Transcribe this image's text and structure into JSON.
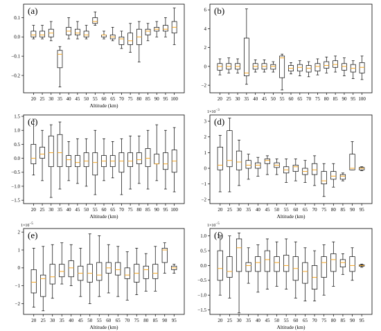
{
  "figure": {
    "colors": {
      "box": "#000000",
      "median": "#f5a623",
      "frame": "#000000"
    }
  },
  "chart_data": [
    {
      "type": "box",
      "label": "(a)",
      "xlabel": "Altitude (km)",
      "categories": [
        "20",
        "25",
        "30",
        "35",
        "40",
        "45",
        "50",
        "55",
        "60",
        "65",
        "70",
        "75",
        "80",
        "85",
        "90",
        "95",
        "100"
      ],
      "yticks": [
        0.1,
        0.0,
        -0.1,
        -0.2
      ],
      "ytick_labels": [
        "0.1",
        "0.0",
        "−0.1",
        "−0.2"
      ],
      "ylim": [
        -0.29,
        0.17
      ],
      "multiplier": "",
      "boxes": [
        {
          "wlo": -0.01,
          "q1": 0.0,
          "med": 0.01,
          "q3": 0.03,
          "whi": 0.06
        },
        {
          "wlo": -0.01,
          "q1": 0.0,
          "med": 0.01,
          "q3": 0.03,
          "whi": 0.06
        },
        {
          "wlo": -0.02,
          "q1": 0.0,
          "med": 0.02,
          "q3": 0.04,
          "whi": 0.08
        },
        {
          "wlo": -0.26,
          "q1": -0.16,
          "med": -0.09,
          "q3": -0.07,
          "whi": -0.05
        },
        {
          "wlo": -0.01,
          "q1": 0.01,
          "med": 0.03,
          "q3": 0.05,
          "whi": 0.1
        },
        {
          "wlo": -0.01,
          "q1": 0.01,
          "med": 0.02,
          "q3": 0.04,
          "whi": 0.08
        },
        {
          "wlo": -0.01,
          "q1": 0.0,
          "med": 0.01,
          "q3": 0.03,
          "whi": 0.06
        },
        {
          "wlo": 0.06,
          "q1": 0.07,
          "med": 0.08,
          "q3": 0.1,
          "whi": 0.13
        },
        {
          "wlo": -0.01,
          "q1": 0.0,
          "med": 0.01,
          "q3": 0.01,
          "whi": 0.03
        },
        {
          "wlo": -0.02,
          "q1": -0.01,
          "med": 0.0,
          "q3": 0.01,
          "whi": 0.05
        },
        {
          "wlo": -0.06,
          "q1": -0.04,
          "med": -0.01,
          "q3": 0.0,
          "whi": 0.03
        },
        {
          "wlo": -0.08,
          "q1": -0.04,
          "med": -0.02,
          "q3": 0.02,
          "whi": 0.07
        },
        {
          "wlo": -0.13,
          "q1": -0.04,
          "med": 0.0,
          "q3": 0.04,
          "whi": 0.08
        },
        {
          "wlo": -0.02,
          "q1": 0.01,
          "med": 0.03,
          "q3": 0.04,
          "whi": 0.07
        },
        {
          "wlo": 0.0,
          "q1": 0.03,
          "med": 0.04,
          "q3": 0.05,
          "whi": 0.08
        },
        {
          "wlo": 0.0,
          "q1": 0.03,
          "med": 0.04,
          "q3": 0.06,
          "whi": 0.1
        },
        {
          "wlo": -0.04,
          "q1": 0.02,
          "med": 0.05,
          "q3": 0.08,
          "whi": 0.15
        }
      ]
    },
    {
      "type": "box",
      "label": "(b)",
      "xlabel": "",
      "categories": [
        "20",
        "25",
        "30",
        "35",
        "40",
        "45",
        "50",
        "55",
        "60",
        "65",
        "70",
        "75",
        "80",
        "85",
        "90",
        "95",
        "100"
      ],
      "yticks": [
        6,
        4,
        2,
        0,
        -2
      ],
      "ytick_labels": [
        "6",
        "4",
        "2",
        "0",
        "−2"
      ],
      "ylim": [
        -2.8,
        6.6
      ],
      "multiplier": "",
      "boxes": [
        {
          "wlo": -0.9,
          "q1": -0.4,
          "med": 0.0,
          "q3": 0.3,
          "whi": 0.8
        },
        {
          "wlo": -0.7,
          "q1": -0.3,
          "med": 0.0,
          "q3": 0.3,
          "whi": 0.9
        },
        {
          "wlo": -0.7,
          "q1": -0.3,
          "med": 0.0,
          "q3": 0.3,
          "whi": 0.8
        },
        {
          "wlo": -1.9,
          "q1": -1.0,
          "med": -0.7,
          "q3": 3.0,
          "whi": 6.1
        },
        {
          "wlo": -0.6,
          "q1": -0.3,
          "med": 0.0,
          "q3": 0.3,
          "whi": 0.7
        },
        {
          "wlo": -0.6,
          "q1": -0.3,
          "med": 0.0,
          "q3": 0.3,
          "whi": 0.7
        },
        {
          "wlo": -0.6,
          "q1": -0.3,
          "med": 0.0,
          "q3": 0.2,
          "whi": 0.5
        },
        {
          "wlo": -2.5,
          "q1": -1.2,
          "med": 0.9,
          "q3": 1.1,
          "whi": 1.3
        },
        {
          "wlo": -0.8,
          "q1": -0.5,
          "med": -0.2,
          "q3": 0.1,
          "whi": 0.4
        },
        {
          "wlo": -1.0,
          "q1": -0.5,
          "med": -0.1,
          "q3": 0.2,
          "whi": 0.6
        },
        {
          "wlo": -1.1,
          "q1": -0.6,
          "med": -0.2,
          "q3": 0.1,
          "whi": 0.5
        },
        {
          "wlo": -0.9,
          "q1": -0.5,
          "med": 0.0,
          "q3": 0.3,
          "whi": 0.8
        },
        {
          "wlo": -0.7,
          "q1": -0.2,
          "med": 0.1,
          "q3": 0.5,
          "whi": 1.0
        },
        {
          "wlo": -0.6,
          "q1": -0.1,
          "med": 0.2,
          "q3": 0.6,
          "whi": 1.1
        },
        {
          "wlo": -1.0,
          "q1": -0.4,
          "med": 0.0,
          "q3": 0.3,
          "whi": 0.9
        },
        {
          "wlo": -1.3,
          "q1": -0.6,
          "med": -0.2,
          "q3": 0.2,
          "whi": 0.6
        },
        {
          "wlo": -1.4,
          "q1": -0.7,
          "med": -0.1,
          "q3": 0.4,
          "whi": 1.1
        }
      ]
    },
    {
      "type": "box",
      "label": "(c)",
      "xlabel": "Altitude (km)",
      "categories": [
        "20",
        "25",
        "30",
        "35",
        "40",
        "45",
        "50",
        "55",
        "60",
        "65",
        "70",
        "75",
        "80",
        "85",
        "90",
        "95",
        "100"
      ],
      "yticks": [
        1.5,
        1.0,
        0.5,
        0.0,
        -0.5,
        -1.0,
        -1.5
      ],
      "ytick_labels": [
        "1.5",
        "1.0",
        "0.5",
        "0.0",
        "−0.5",
        "−1.0",
        "−1.5"
      ],
      "ylim": [
        -1.62,
        1.55
      ],
      "multiplier": "",
      "boxes": [
        {
          "wlo": -0.6,
          "q1": -0.2,
          "med": 0.0,
          "q3": 0.5,
          "whi": 1.4
        },
        {
          "wlo": -0.8,
          "q1": 0.0,
          "med": 0.15,
          "q3": 0.4,
          "whi": 1.0
        },
        {
          "wlo": -1.4,
          "q1": -0.3,
          "med": 0.2,
          "q3": 0.8,
          "whi": 1.2
        },
        {
          "wlo": -1.1,
          "q1": -0.3,
          "med": 0.2,
          "q3": 0.85,
          "whi": 1.3
        },
        {
          "wlo": -0.8,
          "q1": -0.3,
          "med": -0.05,
          "q3": 0.1,
          "whi": 0.6
        },
        {
          "wlo": -0.9,
          "q1": -0.3,
          "med": -0.15,
          "q3": 0.1,
          "whi": 0.7
        },
        {
          "wlo": -1.0,
          "q1": -0.3,
          "med": -0.1,
          "q3": 0.2,
          "whi": 0.7
        },
        {
          "wlo": -1.3,
          "q1": -0.6,
          "med": -0.15,
          "q3": 0.2,
          "whi": 1.0
        },
        {
          "wlo": -0.8,
          "q1": -0.3,
          "med": -0.1,
          "q3": 0.1,
          "whi": 0.7
        },
        {
          "wlo": -0.7,
          "q1": -0.3,
          "med": -0.1,
          "q3": 0.1,
          "whi": 0.6
        },
        {
          "wlo": -1.3,
          "q1": -0.5,
          "med": -0.1,
          "q3": 0.2,
          "whi": 0.7
        },
        {
          "wlo": -1.1,
          "q1": -0.3,
          "med": -0.1,
          "q3": 0.2,
          "whi": 0.8
        },
        {
          "wlo": -0.9,
          "q1": -0.2,
          "med": -0.05,
          "q3": 0.2,
          "whi": 0.8
        },
        {
          "wlo": -1.1,
          "q1": -0.3,
          "med": 0.0,
          "q3": 0.35,
          "whi": 1.0
        },
        {
          "wlo": -0.8,
          "q1": -0.2,
          "med": -0.2,
          "q3": 0.15,
          "whi": 1.2
        },
        {
          "wlo": -1.1,
          "q1": -0.4,
          "med": -0.2,
          "q3": 0.2,
          "whi": 1.0
        },
        {
          "wlo": -1.2,
          "q1": -0.5,
          "med": -0.1,
          "q3": 0.3,
          "whi": 1.1
        }
      ]
    },
    {
      "type": "box",
      "label": "(d)",
      "xlabel": "Altitude (km)",
      "categories": [
        "20",
        "25",
        "30",
        "35",
        "40",
        "45",
        "50",
        "55",
        "60",
        "65",
        "70",
        "75",
        "80",
        "85",
        "90",
        "95"
      ],
      "yticks": [
        3,
        2,
        1,
        0,
        -1,
        -2
      ],
      "ytick_labels": [
        "3",
        "2",
        "1",
        "0",
        "−1",
        "−2"
      ],
      "ylim": [
        -2.25,
        3.4
      ],
      "multiplier": "1e−3",
      "boxes": [
        {
          "wlo": -1.5,
          "q1": -0.1,
          "med": 0.2,
          "q3": 1.35,
          "whi": 2.1
        },
        {
          "wlo": -1.5,
          "q1": 0.1,
          "med": 0.5,
          "q3": 2.4,
          "whi": 3.2
        },
        {
          "wlo": -1.1,
          "q1": -0.1,
          "med": 0.4,
          "q3": 1.1,
          "whi": 1.8
        },
        {
          "wlo": -0.7,
          "q1": 0.0,
          "med": 0.2,
          "q3": 0.5,
          "whi": 0.9
        },
        {
          "wlo": -0.5,
          "q1": 0.0,
          "med": 0.2,
          "q3": 0.35,
          "whi": 0.7
        },
        {
          "wlo": -0.4,
          "q1": 0.3,
          "med": 0.5,
          "q3": 0.6,
          "whi": 0.8
        },
        {
          "wlo": -0.4,
          "q1": 0.05,
          "med": 0.2,
          "q3": 0.35,
          "whi": 0.6
        },
        {
          "wlo": -0.9,
          "q1": -0.3,
          "med": -0.1,
          "q3": 0.1,
          "whi": 0.6
        },
        {
          "wlo": -0.8,
          "q1": -0.2,
          "med": 0.1,
          "q3": 0.2,
          "whi": 0.6
        },
        {
          "wlo": -0.9,
          "q1": -0.4,
          "med": -0.2,
          "q3": 0.0,
          "whi": 0.5
        },
        {
          "wlo": -1.1,
          "q1": -0.4,
          "med": -0.1,
          "q3": 0.3,
          "whi": 0.8
        },
        {
          "wlo": -1.8,
          "q1": -1.0,
          "med": -0.8,
          "q3": -0.2,
          "whi": 0.3
        },
        {
          "wlo": -1.2,
          "q1": -0.7,
          "med": -0.5,
          "q3": -0.2,
          "whi": 0.3
        },
        {
          "wlo": -0.8,
          "q1": -0.7,
          "med": -0.5,
          "q3": -0.4,
          "whi": -0.3
        },
        {
          "wlo": -0.1,
          "q1": -0.1,
          "med": 0.0,
          "q3": 0.9,
          "whi": 1.7
        },
        {
          "wlo": -0.15,
          "q1": -0.1,
          "med": 0.0,
          "q3": 0.05,
          "whi": 0.1
        }
      ]
    },
    {
      "type": "box",
      "label": "(e)",
      "xlabel": "Altitude (km)",
      "categories": [
        "20",
        "25",
        "30",
        "35",
        "40",
        "45",
        "50",
        "55",
        "60",
        "65",
        "70",
        "75",
        "80",
        "85",
        "90",
        "95"
      ],
      "yticks": [
        2,
        1,
        0,
        -1,
        -2
      ],
      "ytick_labels": [
        "2",
        "1",
        "0",
        "−1",
        "−2"
      ],
      "ylim": [
        -2.6,
        2.2
      ],
      "multiplier": "1e−5",
      "boxes": [
        {
          "wlo": -2.2,
          "q1": -1.4,
          "med": -0.8,
          "q3": -0.1,
          "whi": 1.1
        },
        {
          "wlo": -2.4,
          "q1": -1.6,
          "med": -0.6,
          "q3": -0.4,
          "whi": 1.2
        },
        {
          "wlo": -1.7,
          "q1": -0.9,
          "med": -0.5,
          "q3": 0.2,
          "whi": 1.3
        },
        {
          "wlo": -0.9,
          "q1": -0.5,
          "med": -0.2,
          "q3": 0.2,
          "whi": 1.4
        },
        {
          "wlo": -1.0,
          "q1": -0.5,
          "med": 0.0,
          "q3": 0.4,
          "whi": 1.3
        },
        {
          "wlo": -1.6,
          "q1": -0.7,
          "med": -0.3,
          "q3": 0.1,
          "whi": 1.1
        },
        {
          "wlo": -2.0,
          "q1": -0.8,
          "med": -0.3,
          "q3": 0.2,
          "whi": 1.9
        },
        {
          "wlo": -1.6,
          "q1": -0.7,
          "med": -0.4,
          "q3": 0.3,
          "whi": 1.8
        },
        {
          "wlo": -1.4,
          "q1": -0.3,
          "med": 0.0,
          "q3": 0.3,
          "whi": 1.3
        },
        {
          "wlo": -1.6,
          "q1": -0.4,
          "med": -0.1,
          "q3": 0.3,
          "whi": 1.2
        },
        {
          "wlo": -1.8,
          "q1": -0.6,
          "med": -0.4,
          "q3": 0.0,
          "whi": 0.9
        },
        {
          "wlo": -1.5,
          "q1": -0.8,
          "med": -0.3,
          "q3": 0.2,
          "whi": 1.1
        },
        {
          "wlo": -1.3,
          "q1": -0.6,
          "med": -0.1,
          "q3": 0.1,
          "whi": 0.8
        },
        {
          "wlo": -1.3,
          "q1": -0.6,
          "med": -0.3,
          "q3": 0.2,
          "whi": 1.2
        },
        {
          "wlo": -0.3,
          "q1": 0.3,
          "med": 1.0,
          "q3": 1.1,
          "whi": 1.4
        },
        {
          "wlo": -0.3,
          "q1": -0.1,
          "med": 0.0,
          "q3": 0.1,
          "whi": 0.2
        }
      ]
    },
    {
      "type": "box",
      "label": "(f)",
      "xlabel": "Altitude (km)",
      "categories": [
        "20",
        "25",
        "30",
        "35",
        "40",
        "45",
        "50",
        "55",
        "60",
        "65",
        "70",
        "75",
        "80",
        "85",
        "90",
        "95"
      ],
      "yticks": [
        1.0,
        0.5,
        0.0,
        -0.5,
        -1.0,
        -1.5
      ],
      "ytick_labels": [
        "1.0",
        "0.5",
        "0.0",
        "−0.5",
        "−1.0",
        "−1.5"
      ],
      "ylim": [
        -1.65,
        1.25
      ],
      "multiplier": "1e−5",
      "boxes": [
        {
          "wlo": -1.0,
          "q1": -0.5,
          "med": -0.1,
          "q3": 0.5,
          "whi": 1.0
        },
        {
          "wlo": -1.1,
          "q1": -0.4,
          "med": -0.2,
          "q3": 0.3,
          "whi": 1.0
        },
        {
          "wlo": -1.6,
          "q1": -0.2,
          "med": 0.6,
          "q3": 0.9,
          "whi": 1.1
        },
        {
          "wlo": -0.6,
          "q1": -0.2,
          "med": 0.0,
          "q3": 0.1,
          "whi": 0.6
        },
        {
          "wlo": -0.9,
          "q1": -0.2,
          "med": 0.1,
          "q3": 0.3,
          "whi": 0.7
        },
        {
          "wlo": -0.8,
          "q1": -0.2,
          "med": 0.2,
          "q3": 0.5,
          "whi": 0.9
        },
        {
          "wlo": -0.7,
          "q1": -0.2,
          "med": 0.1,
          "q3": 0.3,
          "whi": 0.8
        },
        {
          "wlo": -0.8,
          "q1": -0.2,
          "med": 0.0,
          "q3": 0.35,
          "whi": 0.9
        },
        {
          "wlo": -1.1,
          "q1": -0.5,
          "med": -0.1,
          "q3": 0.3,
          "whi": 0.8
        },
        {
          "wlo": -1.2,
          "q1": -0.6,
          "med": -0.2,
          "q3": 0.1,
          "whi": 0.6
        },
        {
          "wlo": -1.2,
          "q1": -0.8,
          "med": -0.4,
          "q3": 0.0,
          "whi": 0.5
        },
        {
          "wlo": -1.0,
          "q1": -0.4,
          "med": 0.1,
          "q3": 0.3,
          "whi": 0.7
        },
        {
          "wlo": -0.7,
          "q1": -0.2,
          "med": 0.2,
          "q3": 0.4,
          "whi": 0.8
        },
        {
          "wlo": -0.3,
          "q1": -0.05,
          "med": 0.1,
          "q3": 0.2,
          "whi": 0.4
        },
        {
          "wlo": -0.5,
          "q1": -0.2,
          "med": 0.0,
          "q3": 0.3,
          "whi": 0.6
        },
        {
          "wlo": -0.06,
          "q1": -0.02,
          "med": 0.0,
          "q3": 0.02,
          "whi": 0.05
        }
      ]
    }
  ]
}
